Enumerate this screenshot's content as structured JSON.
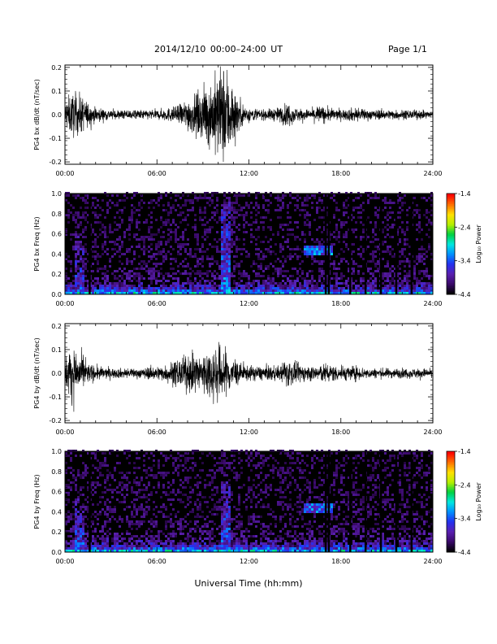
{
  "header": {
    "title": "2014/12/10   00:00–24:00 UT",
    "page": "Page 1/1"
  },
  "x_axis_label": "Universal Time (hh:mm)",
  "colorbar": {
    "label": "Log₁₀ Power",
    "ticks": [
      "-1.4",
      "-2.4",
      "-3.4",
      "-4.4"
    ],
    "range": [
      -4.4,
      -1.4
    ],
    "colors": [
      "#000000",
      "#3a0a6a",
      "#5a1fb0",
      "#2430f0",
      "#0090ff",
      "#00e8e0",
      "#00d040",
      "#b8f000",
      "#ffe000",
      "#ff7000",
      "#ff0000"
    ]
  },
  "chart_data": [
    {
      "type": "line",
      "ylabel": "PG4 bx dB/dt (nT/sec)",
      "xlim": [
        0,
        24
      ],
      "ylim": [
        -0.21,
        0.21
      ],
      "xticks": [
        "00:00",
        "06:00",
        "12:00",
        "18:00",
        "24:00"
      ],
      "yticks": [
        "0.2",
        "0.1",
        "0.0",
        "-0.1",
        "-0.2"
      ],
      "envelope": [
        [
          0.0,
          0.06
        ],
        [
          0.5,
          0.09
        ],
        [
          1.0,
          0.08
        ],
        [
          1.5,
          0.05
        ],
        [
          2.0,
          0.03
        ],
        [
          3.0,
          0.02
        ],
        [
          4.0,
          0.02
        ],
        [
          5.0,
          0.02
        ],
        [
          6.0,
          0.02
        ],
        [
          7.0,
          0.03
        ],
        [
          7.5,
          0.04
        ],
        [
          8.0,
          0.07
        ],
        [
          8.5,
          0.08
        ],
        [
          9.0,
          0.1
        ],
        [
          9.5,
          0.14
        ],
        [
          10.0,
          0.18
        ],
        [
          10.5,
          0.21
        ],
        [
          11.0,
          0.12
        ],
        [
          11.5,
          0.05
        ],
        [
          12.0,
          0.03
        ],
        [
          13.0,
          0.02
        ],
        [
          14.0,
          0.03
        ],
        [
          14.5,
          0.05
        ],
        [
          15.0,
          0.03
        ],
        [
          16.0,
          0.02
        ],
        [
          16.5,
          0.04
        ],
        [
          17.0,
          0.03
        ],
        [
          18.0,
          0.02
        ],
        [
          19.0,
          0.03
        ],
        [
          20.0,
          0.02
        ],
        [
          22.0,
          0.02
        ],
        [
          24.0,
          0.015
        ]
      ]
    },
    {
      "type": "heatmap",
      "ylabel": "PG4 bx Freq (Hz)",
      "xlim": [
        0,
        24
      ],
      "ylim": [
        0,
        1.0
      ],
      "xticks": [
        "00:00",
        "06:00",
        "12:00",
        "18:00",
        "24:00"
      ],
      "yticks": [
        "1.0",
        "0.8",
        "0.6",
        "0.4",
        "0.2",
        "0.0"
      ],
      "dropouts_hours": [
        1.6,
        17.0,
        17.2,
        18.6,
        19.6,
        20.6,
        21.6,
        22.6
      ],
      "features": [
        {
          "t": 10.5,
          "fmax": 0.9,
          "power": -3.4
        },
        {
          "t": 1.0,
          "fmax": 0.6,
          "power": -3.6
        },
        {
          "t_start": 15.5,
          "t_end": 17.5,
          "f": 0.42,
          "power": -3.4
        }
      ]
    },
    {
      "type": "line",
      "ylabel": "PG4 by dB/dt (nT/sec)",
      "xlim": [
        0,
        24
      ],
      "ylim": [
        -0.21,
        0.21
      ],
      "xticks": [
        "00:00",
        "06:00",
        "12:00",
        "18:00",
        "24:00"
      ],
      "yticks": [
        "0.2",
        "0.1",
        "0.0",
        "-0.1",
        "-0.2"
      ],
      "envelope": [
        [
          0.0,
          0.06
        ],
        [
          0.5,
          0.12
        ],
        [
          1.0,
          0.08
        ],
        [
          1.5,
          0.04
        ],
        [
          2.0,
          0.03
        ],
        [
          3.0,
          0.02
        ],
        [
          4.0,
          0.02
        ],
        [
          5.0,
          0.02
        ],
        [
          6.0,
          0.03
        ],
        [
          6.5,
          0.03
        ],
        [
          7.0,
          0.05
        ],
        [
          7.5,
          0.06
        ],
        [
          8.0,
          0.07
        ],
        [
          8.5,
          0.08
        ],
        [
          9.0,
          0.09
        ],
        [
          9.5,
          0.1
        ],
        [
          10.0,
          0.12
        ],
        [
          10.5,
          0.1
        ],
        [
          11.0,
          0.06
        ],
        [
          11.5,
          0.04
        ],
        [
          12.0,
          0.03
        ],
        [
          13.0,
          0.03
        ],
        [
          14.0,
          0.03
        ],
        [
          14.5,
          0.06
        ],
        [
          15.0,
          0.04
        ],
        [
          16.0,
          0.03
        ],
        [
          17.0,
          0.04
        ],
        [
          18.0,
          0.03
        ],
        [
          19.0,
          0.03
        ],
        [
          20.0,
          0.02
        ],
        [
          22.0,
          0.02
        ],
        [
          23.5,
          0.02
        ],
        [
          24.0,
          0.015
        ]
      ]
    },
    {
      "type": "heatmap",
      "ylabel": "PG4 by Freq (Hz)",
      "xlim": [
        0,
        24
      ],
      "ylim": [
        0,
        1.0
      ],
      "xticks": [
        "00:00",
        "06:00",
        "12:00",
        "18:00",
        "24:00"
      ],
      "yticks": [
        "1.0",
        "0.8",
        "0.6",
        "0.4",
        "0.2",
        "0.0"
      ],
      "dropouts_hours": [
        1.6,
        17.0,
        17.2,
        18.6,
        19.6,
        20.6,
        21.6,
        22.6
      ],
      "features": [
        {
          "t": 10.5,
          "fmax": 0.7,
          "power": -3.5
        },
        {
          "t": 1.0,
          "fmax": 0.6,
          "power": -3.6
        },
        {
          "t_start": 15.5,
          "t_end": 17.5,
          "f": 0.42,
          "power": -3.5
        }
      ]
    }
  ]
}
